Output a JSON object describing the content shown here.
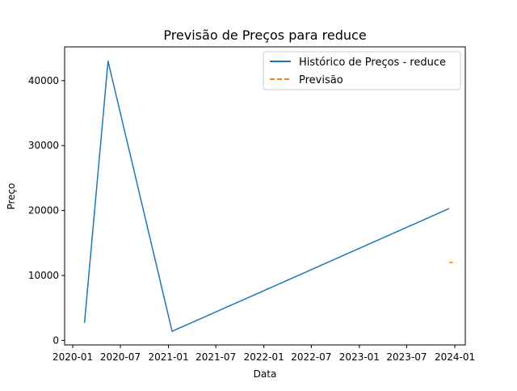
{
  "chart_data": {
    "type": "line",
    "title": "Previsão de Preços para reduce",
    "xlabel": "Data",
    "ylabel": "Preço",
    "x_ticks": [
      "2020-01",
      "2020-07",
      "2021-01",
      "2021-07",
      "2022-01",
      "2022-07",
      "2023-01",
      "2023-07",
      "2024-01"
    ],
    "y_ticks": [
      0,
      10000,
      20000,
      30000,
      40000
    ],
    "ylim": [
      -700,
      45200
    ],
    "xlim": [
      "2019-12-01",
      "2024-02-10"
    ],
    "grid": false,
    "legend_position": "top-right",
    "series": [
      {
        "name": "Histórico de Preços - reduce",
        "style": "solid",
        "color": "#1f77b4",
        "points": [
          {
            "x": "2020-02-15",
            "y": 2700
          },
          {
            "x": "2020-05-15",
            "y": 43000
          },
          {
            "x": "2021-01-15",
            "y": 1400
          },
          {
            "x": "2023-12-10",
            "y": 20300
          }
        ]
      },
      {
        "name": "Previsão",
        "style": "dashed",
        "color": "#ff7f0e",
        "points": [
          {
            "x": "2023-12-10",
            "y": 12000
          },
          {
            "x": "2024-01-05",
            "y": 12000
          }
        ]
      }
    ]
  }
}
